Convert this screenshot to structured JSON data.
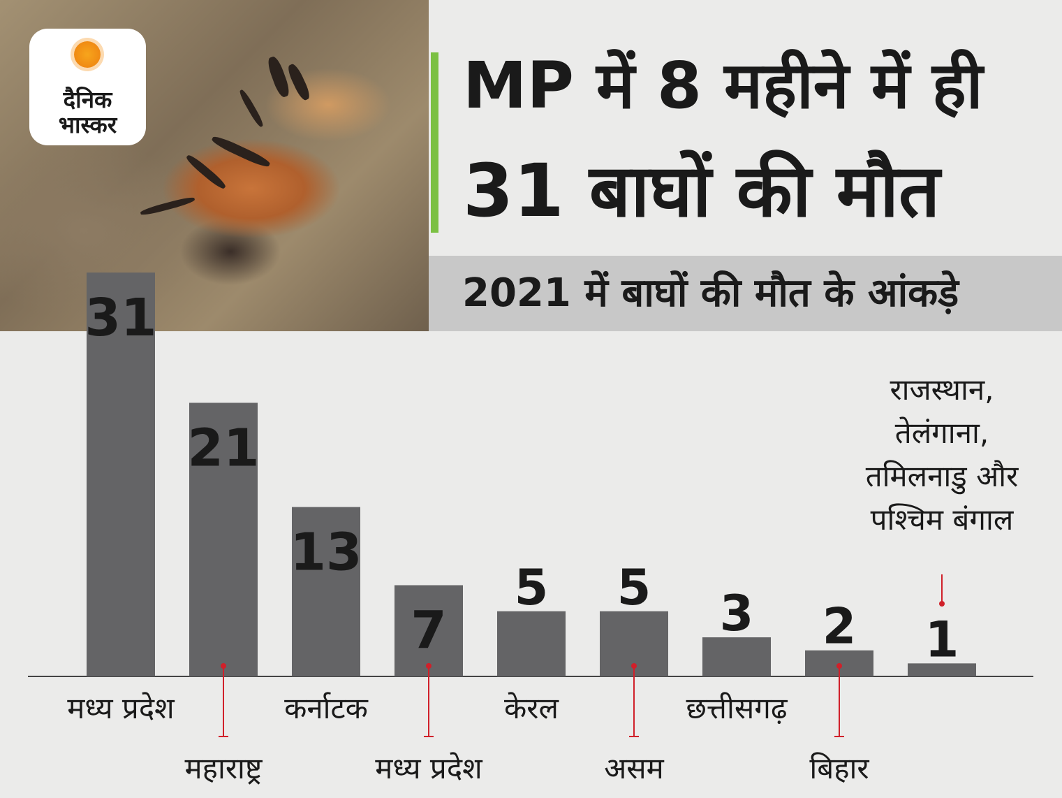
{
  "brand": {
    "line1": "दैनिक",
    "line2": "भास्कर"
  },
  "headline": {
    "line1": "MP में 8 महीने में ही",
    "line2": "31 बाघों की मौत"
  },
  "subtitle": "2021 में बाघों की मौत के आंकड़े",
  "colors": {
    "bar": "#646466",
    "accent": "#7bc043",
    "leader": "#d0202a",
    "band": "#c8c8c8",
    "background": "#ebebea"
  },
  "chart_data": {
    "type": "bar",
    "title": "2021 में बाघों की मौत के आंकड़े",
    "categories": [
      "मध्य प्रदेश",
      "महाराष्ट्र",
      "कर्नाटक",
      "मध्य प्रदेश",
      "केरल",
      "असम",
      "छत्तीसगढ़",
      "बिहार",
      "राजस्थान, तेलंगाना, तमिलनाडु और पश्चिम बंगाल"
    ],
    "values": [
      31,
      21,
      13,
      7,
      5,
      5,
      3,
      2,
      1
    ],
    "last_label_lines": [
      "राजस्थान,",
      "तेलंगाना,",
      "तमिलनाडु और",
      "पश्चिम बंगाल"
    ],
    "ylim": [
      0,
      31
    ],
    "xlabel": "",
    "ylabel": "",
    "grid": false,
    "legend": "none"
  }
}
